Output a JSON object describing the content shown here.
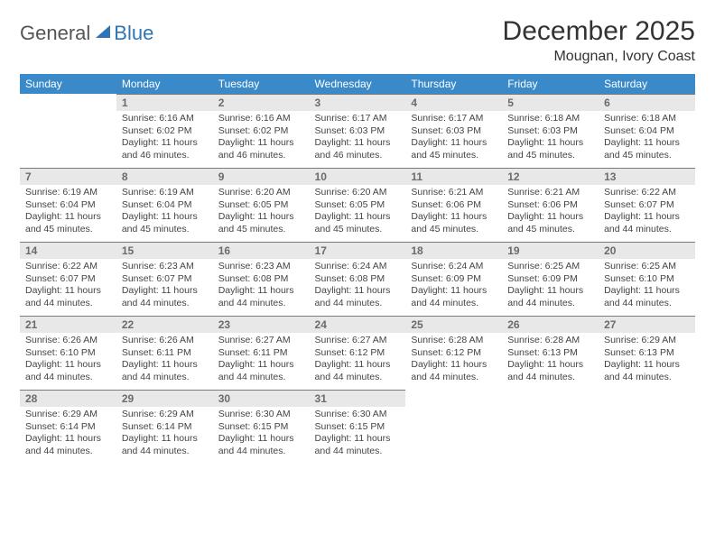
{
  "logo": {
    "text1": "General",
    "text2": "Blue"
  },
  "title": "December 2025",
  "location": "Mougnan, Ivory Coast",
  "colors": {
    "header_bg": "#3a8ac9",
    "header_text": "#ffffff",
    "daynum_bg": "#e8e8e8",
    "daynum_text": "#6b6b6b",
    "body_text": "#444444",
    "logo_blue": "#2e75b6"
  },
  "typography": {
    "title_fontsize": 30,
    "location_fontsize": 16,
    "dayheader_fontsize": 12,
    "daybody_fontsize": 10.5
  },
  "days": [
    "Sunday",
    "Monday",
    "Tuesday",
    "Wednesday",
    "Thursday",
    "Friday",
    "Saturday"
  ],
  "weeks": [
    [
      null,
      {
        "n": "1",
        "sr": "Sunrise: 6:16 AM",
        "ss": "Sunset: 6:02 PM",
        "dl": "Daylight: 11 hours and 46 minutes."
      },
      {
        "n": "2",
        "sr": "Sunrise: 6:16 AM",
        "ss": "Sunset: 6:02 PM",
        "dl": "Daylight: 11 hours and 46 minutes."
      },
      {
        "n": "3",
        "sr": "Sunrise: 6:17 AM",
        "ss": "Sunset: 6:03 PM",
        "dl": "Daylight: 11 hours and 46 minutes."
      },
      {
        "n": "4",
        "sr": "Sunrise: 6:17 AM",
        "ss": "Sunset: 6:03 PM",
        "dl": "Daylight: 11 hours and 45 minutes."
      },
      {
        "n": "5",
        "sr": "Sunrise: 6:18 AM",
        "ss": "Sunset: 6:03 PM",
        "dl": "Daylight: 11 hours and 45 minutes."
      },
      {
        "n": "6",
        "sr": "Sunrise: 6:18 AM",
        "ss": "Sunset: 6:04 PM",
        "dl": "Daylight: 11 hours and 45 minutes."
      }
    ],
    [
      {
        "n": "7",
        "sr": "Sunrise: 6:19 AM",
        "ss": "Sunset: 6:04 PM",
        "dl": "Daylight: 11 hours and 45 minutes."
      },
      {
        "n": "8",
        "sr": "Sunrise: 6:19 AM",
        "ss": "Sunset: 6:04 PM",
        "dl": "Daylight: 11 hours and 45 minutes."
      },
      {
        "n": "9",
        "sr": "Sunrise: 6:20 AM",
        "ss": "Sunset: 6:05 PM",
        "dl": "Daylight: 11 hours and 45 minutes."
      },
      {
        "n": "10",
        "sr": "Sunrise: 6:20 AM",
        "ss": "Sunset: 6:05 PM",
        "dl": "Daylight: 11 hours and 45 minutes."
      },
      {
        "n": "11",
        "sr": "Sunrise: 6:21 AM",
        "ss": "Sunset: 6:06 PM",
        "dl": "Daylight: 11 hours and 45 minutes."
      },
      {
        "n": "12",
        "sr": "Sunrise: 6:21 AM",
        "ss": "Sunset: 6:06 PM",
        "dl": "Daylight: 11 hours and 45 minutes."
      },
      {
        "n": "13",
        "sr": "Sunrise: 6:22 AM",
        "ss": "Sunset: 6:07 PM",
        "dl": "Daylight: 11 hours and 44 minutes."
      }
    ],
    [
      {
        "n": "14",
        "sr": "Sunrise: 6:22 AM",
        "ss": "Sunset: 6:07 PM",
        "dl": "Daylight: 11 hours and 44 minutes."
      },
      {
        "n": "15",
        "sr": "Sunrise: 6:23 AM",
        "ss": "Sunset: 6:07 PM",
        "dl": "Daylight: 11 hours and 44 minutes."
      },
      {
        "n": "16",
        "sr": "Sunrise: 6:23 AM",
        "ss": "Sunset: 6:08 PM",
        "dl": "Daylight: 11 hours and 44 minutes."
      },
      {
        "n": "17",
        "sr": "Sunrise: 6:24 AM",
        "ss": "Sunset: 6:08 PM",
        "dl": "Daylight: 11 hours and 44 minutes."
      },
      {
        "n": "18",
        "sr": "Sunrise: 6:24 AM",
        "ss": "Sunset: 6:09 PM",
        "dl": "Daylight: 11 hours and 44 minutes."
      },
      {
        "n": "19",
        "sr": "Sunrise: 6:25 AM",
        "ss": "Sunset: 6:09 PM",
        "dl": "Daylight: 11 hours and 44 minutes."
      },
      {
        "n": "20",
        "sr": "Sunrise: 6:25 AM",
        "ss": "Sunset: 6:10 PM",
        "dl": "Daylight: 11 hours and 44 minutes."
      }
    ],
    [
      {
        "n": "21",
        "sr": "Sunrise: 6:26 AM",
        "ss": "Sunset: 6:10 PM",
        "dl": "Daylight: 11 hours and 44 minutes."
      },
      {
        "n": "22",
        "sr": "Sunrise: 6:26 AM",
        "ss": "Sunset: 6:11 PM",
        "dl": "Daylight: 11 hours and 44 minutes."
      },
      {
        "n": "23",
        "sr": "Sunrise: 6:27 AM",
        "ss": "Sunset: 6:11 PM",
        "dl": "Daylight: 11 hours and 44 minutes."
      },
      {
        "n": "24",
        "sr": "Sunrise: 6:27 AM",
        "ss": "Sunset: 6:12 PM",
        "dl": "Daylight: 11 hours and 44 minutes."
      },
      {
        "n": "25",
        "sr": "Sunrise: 6:28 AM",
        "ss": "Sunset: 6:12 PM",
        "dl": "Daylight: 11 hours and 44 minutes."
      },
      {
        "n": "26",
        "sr": "Sunrise: 6:28 AM",
        "ss": "Sunset: 6:13 PM",
        "dl": "Daylight: 11 hours and 44 minutes."
      },
      {
        "n": "27",
        "sr": "Sunrise: 6:29 AM",
        "ss": "Sunset: 6:13 PM",
        "dl": "Daylight: 11 hours and 44 minutes."
      }
    ],
    [
      {
        "n": "28",
        "sr": "Sunrise: 6:29 AM",
        "ss": "Sunset: 6:14 PM",
        "dl": "Daylight: 11 hours and 44 minutes."
      },
      {
        "n": "29",
        "sr": "Sunrise: 6:29 AM",
        "ss": "Sunset: 6:14 PM",
        "dl": "Daylight: 11 hours and 44 minutes."
      },
      {
        "n": "30",
        "sr": "Sunrise: 6:30 AM",
        "ss": "Sunset: 6:15 PM",
        "dl": "Daylight: 11 hours and 44 minutes."
      },
      {
        "n": "31",
        "sr": "Sunrise: 6:30 AM",
        "ss": "Sunset: 6:15 PM",
        "dl": "Daylight: 11 hours and 44 minutes."
      },
      null,
      null,
      null
    ]
  ]
}
